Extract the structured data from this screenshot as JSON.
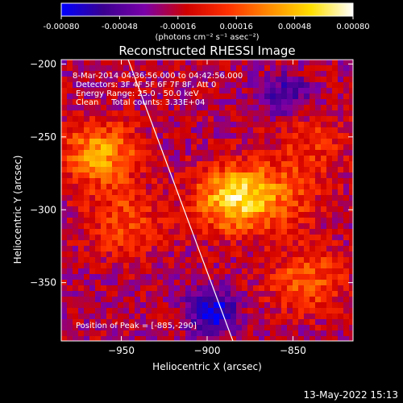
{
  "colorbar": {
    "ticks": [
      "-0.00080",
      "-0.00048",
      "-0.00016",
      "0.00016",
      "0.00048",
      "0.00080"
    ],
    "tick_values": [
      -0.0008,
      -0.00048,
      -0.00016,
      0.00016,
      0.00048,
      0.0008
    ],
    "range": [
      -0.0008,
      0.0008
    ],
    "units": "(photons cm⁻² s⁻¹ asec⁻²)",
    "colors": [
      "#0000ff",
      "#3a0090",
      "#7a00a8",
      "#d00000",
      "#ff3000",
      "#ff8c00",
      "#ffe000",
      "#ffffff"
    ]
  },
  "chart_data": {
    "type": "heatmap",
    "title": "Reconstructed RHESSI Image",
    "xlabel": "Heliocentric X (arcsec)",
    "ylabel": "Heliocentric Y (arcsec)",
    "xlim": [
      -985,
      -815
    ],
    "ylim": [
      -390,
      -197
    ],
    "xticks": [
      -950,
      -900,
      -850
    ],
    "yticks": [
      -200,
      -250,
      -300,
      -350
    ],
    "xtick_labels": [
      "−950",
      "−900",
      "−850"
    ],
    "ytick_labels": [
      "−200",
      "−250",
      "−300",
      "−350"
    ],
    "info": [
      " 8-Mar-2014 04:36:56.000 to 04:42:56.000",
      "Detectors: 3F 4F 5F 6F 7F 8F, Att 0",
      "Energy Range: 25.0 - 50.0 keV",
      "Clean     Total counts: 3.33E+04"
    ],
    "peak_label": "Position of Peak = [-885,-290]",
    "peak": [
      -885,
      -290
    ],
    "limb_line": [
      [
        -946,
        -197
      ],
      [
        -885,
        -390
      ]
    ],
    "hot_regions": [
      {
        "x": -884,
        "y": -292,
        "value": 0.0008
      },
      {
        "x": -962,
        "y": -262,
        "value": 0.0006
      },
      {
        "x": -948,
        "y": -310,
        "value": 0.00035
      },
      {
        "x": -842,
        "y": -348,
        "value": 0.0004
      },
      {
        "x": -855,
        "y": -290,
        "value": 0.0003
      },
      {
        "x": -838,
        "y": -255,
        "value": 0.00025
      }
    ],
    "cold_regions": [
      {
        "x": -897,
        "y": -370,
        "value": -0.0006
      },
      {
        "x": -855,
        "y": -222,
        "value": -0.0004
      }
    ]
  },
  "footer": {
    "date": "13-May-2022 15:13"
  }
}
